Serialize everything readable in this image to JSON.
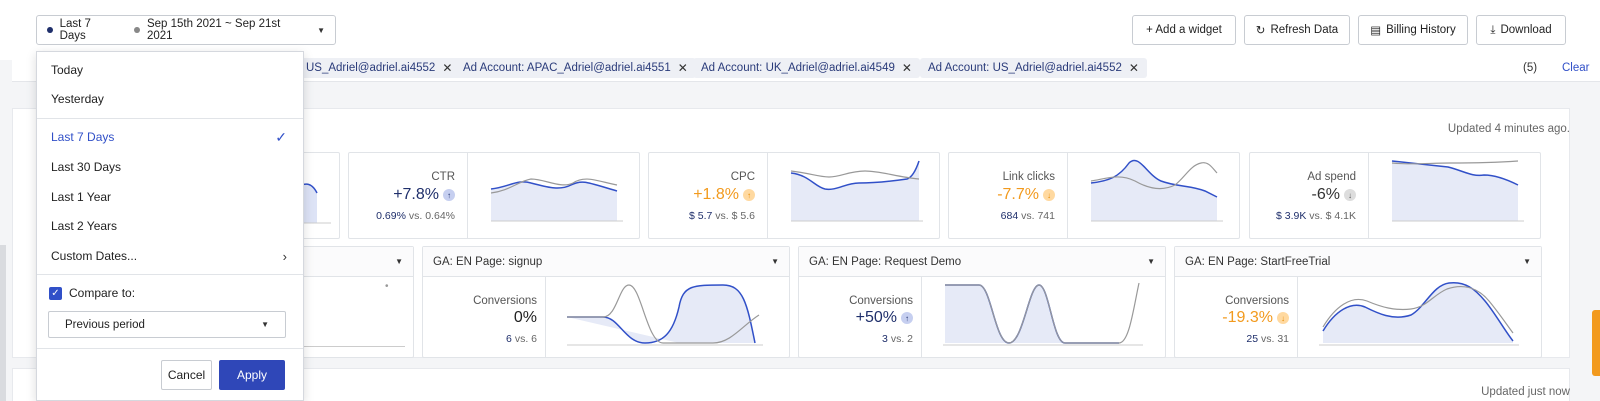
{
  "date_picker": {
    "current_label": "Last 7 Days",
    "compare_label": "Sep 15th 2021 ~ Sep 21st 2021"
  },
  "toolbar": {
    "add_widget": "+ Add a widget",
    "refresh": "Refresh Data",
    "billing": "Billing History",
    "download": "Download"
  },
  "filters": {
    "chips": [
      "US_Adriel@adriel.ai4552",
      "Ad Account: APAC_Adriel@adriel.ai4551",
      "Ad Account: UK_Adriel@adriel.ai4549",
      "Ad Account: US_Adriel@adriel.ai4552"
    ],
    "count": "(5)",
    "clear": "Clear"
  },
  "updated_top": "Updated 4 minutes ago.",
  "updated_bottom": "Updated just now",
  "metrics": [
    {
      "name": "CTR",
      "value": "+7.8%",
      "trend": "up",
      "tone": "blue",
      "current": "0.69%",
      "previous": "0.64%"
    },
    {
      "name": "CPC",
      "value": "+1.8%",
      "trend": "up",
      "tone": "orange",
      "current": "$ 5.7",
      "previous": "$ 5.6"
    },
    {
      "name": "Link clicks",
      "value": "-7.7%",
      "trend": "down",
      "tone": "orange",
      "current": "684",
      "previous": "741"
    },
    {
      "name": "Ad spend",
      "value": "-6%",
      "trend": "down",
      "tone": "neutral",
      "current": "$ 3.9K",
      "previous": "$ 4.1K"
    }
  ],
  "conversions": [
    {
      "title": "GA: EN Page: signup",
      "label": "Conversions",
      "value": "0%",
      "tone": "neutral",
      "current": "6",
      "previous": "6"
    },
    {
      "title": "GA: EN Page: Request Demo",
      "label": "Conversions",
      "value": "+50%",
      "tone": "blue",
      "current": "3",
      "previous": "2"
    },
    {
      "title": "GA: EN Page: StartFreeTrial",
      "label": "Conversions",
      "value": "-19.3%",
      "tone": "orange",
      "current": "25",
      "previous": "31"
    }
  ],
  "vs_label": "vs.",
  "dropdown": {
    "items": [
      "Today",
      "Yesterday",
      "Last 7 Days",
      "Last 30 Days",
      "Last 1 Year",
      "Last 2 Years",
      "Custom Dates..."
    ],
    "selected": "Last 7 Days",
    "compare_label": "Compare to:",
    "compare_option": "Previous period",
    "cancel": "Cancel",
    "apply": "Apply"
  },
  "colors": {
    "accent": "#3150c8",
    "navy": "#1f2f6b",
    "orange": "#f29a1e"
  }
}
